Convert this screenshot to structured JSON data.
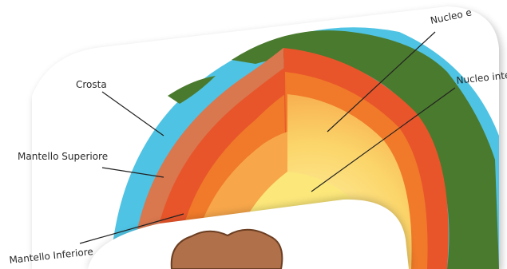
{
  "labels": {
    "crust": "Crosta",
    "upper_mantle": "Mantello Superiore",
    "lower_mantle": "Mantello Inferiore",
    "outer_core": "Nucleo e",
    "inner_core": "Nucleo inte"
  },
  "colors": {
    "ocean": "#4fc3e3",
    "land": "#4a7a2e",
    "crust": "#d9774f",
    "upper_mantle": "#e8552a",
    "lower_mantle": "#f07a2a",
    "outer_core": "#f7a64a",
    "inner_core": "#fbe77a",
    "hat": "#b0704a"
  }
}
